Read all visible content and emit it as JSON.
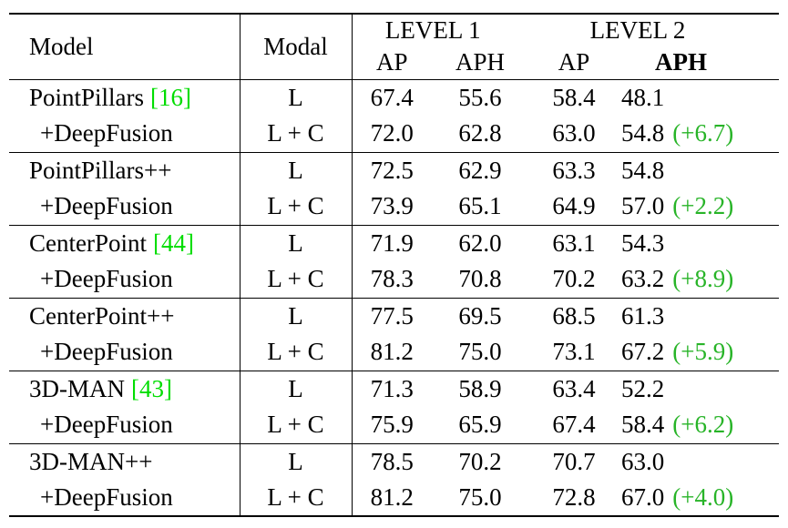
{
  "colors": {
    "background": "#ffffff",
    "text": "#000000",
    "citation_green": "#00dd00",
    "delta_green": "#28b428"
  },
  "header": {
    "model": "Model",
    "modal": "Modal",
    "level1": "LEVEL 1",
    "level2": "LEVEL 2",
    "l1_ap": "AP",
    "l1_aph": "APH",
    "l2_ap": "AP",
    "l2_aph": "APH"
  },
  "rows": [
    {
      "name": "PointPillars",
      "cite": "[16]",
      "modal": "L",
      "l1_ap": "67.4",
      "l1_aph": "55.6",
      "l2_ap": "58.4",
      "l2_aph": "48.1"
    },
    {
      "name": "+DeepFusion",
      "modal": "L + C",
      "l1_ap": "72.0",
      "l1_aph": "62.8",
      "l2_ap": "63.0",
      "l2_aph": "54.8",
      "delta": "(+6.7)"
    },
    {
      "name": "PointPillars++",
      "modal": "L",
      "l1_ap": "72.5",
      "l1_aph": "62.9",
      "l2_ap": "63.3",
      "l2_aph": "54.8"
    },
    {
      "name": "+DeepFusion",
      "modal": "L + C",
      "l1_ap": "73.9",
      "l1_aph": "65.1",
      "l2_ap": "64.9",
      "l2_aph": "57.0",
      "delta": "(+2.2)"
    },
    {
      "name": "CenterPoint",
      "cite": "[44]",
      "modal": "L",
      "l1_ap": "71.9",
      "l1_aph": "62.0",
      "l2_ap": "63.1",
      "l2_aph": "54.3"
    },
    {
      "name": "+DeepFusion",
      "modal": "L + C",
      "l1_ap": "78.3",
      "l1_aph": "70.8",
      "l2_ap": "70.2",
      "l2_aph": "63.2",
      "delta": "(+8.9)"
    },
    {
      "name": "CenterPoint++",
      "modal": "L",
      "l1_ap": "77.5",
      "l1_aph": "69.5",
      "l2_ap": "68.5",
      "l2_aph": "61.3"
    },
    {
      "name": "+DeepFusion",
      "modal": "L + C",
      "l1_ap": "81.2",
      "l1_aph": "75.0",
      "l2_ap": "73.1",
      "l2_aph": "67.2",
      "delta": "(+5.9)"
    },
    {
      "name": "3D-MAN",
      "cite": "[43]",
      "modal": "L",
      "l1_ap": "71.3",
      "l1_aph": "58.9",
      "l2_ap": "63.4",
      "l2_aph": "52.2"
    },
    {
      "name": "+DeepFusion",
      "modal": "L + C",
      "l1_ap": "75.9",
      "l1_aph": "65.9",
      "l2_ap": "67.4",
      "l2_aph": "58.4",
      "delta": "(+6.2)"
    },
    {
      "name": "3D-MAN++",
      "modal": "L",
      "l1_ap": "78.5",
      "l1_aph": "70.2",
      "l2_ap": "70.7",
      "l2_aph": "63.0"
    },
    {
      "name": "+DeepFusion",
      "modal": "L + C",
      "l1_ap": "81.2",
      "l1_aph": "75.0",
      "l2_ap": "72.8",
      "l2_aph": "67.0",
      "delta": "(+4.0)"
    }
  ]
}
